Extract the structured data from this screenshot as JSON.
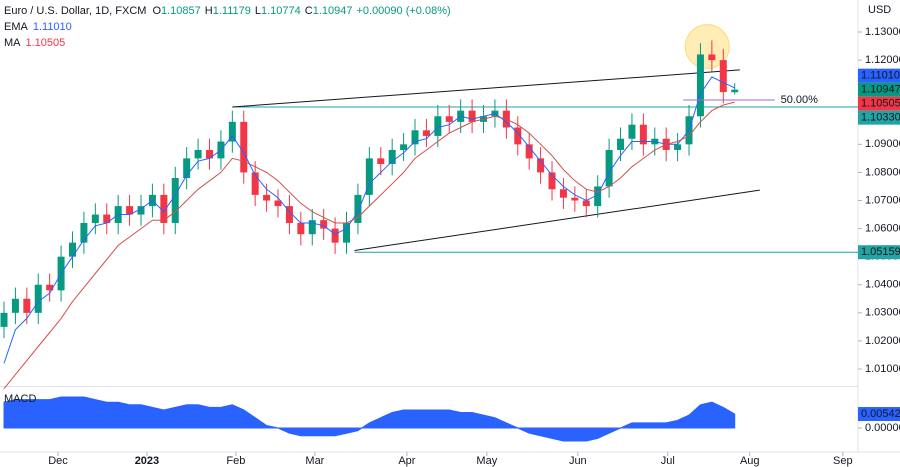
{
  "chart_data": [
    {
      "type": "candlestick",
      "title": "Euro / U.S. Dollar, 1D, FXCM",
      "currency": "USD",
      "ohlc_letters": [
        "O",
        "H",
        "L",
        "C"
      ],
      "change_label": "+0.00090 (+0.08%)",
      "open": [
        1.025,
        1.03,
        1.035,
        1.03,
        1.04,
        1.038,
        1.05,
        1.055,
        1.062,
        1.065,
        1.062,
        1.068,
        1.065,
        1.068,
        1.072,
        1.062,
        1.078,
        1.085,
        1.088,
        1.085,
        1.091,
        1.098,
        1.08,
        1.072,
        1.07,
        1.068,
        1.062,
        1.058,
        1.063,
        1.06,
        1.055,
        1.062,
        1.072,
        1.085,
        1.083,
        1.088,
        1.09,
        1.095,
        1.093,
        1.1,
        1.098,
        1.102,
        1.098,
        1.1,
        1.102,
        1.096,
        1.09,
        1.085,
        1.08,
        1.074,
        1.071,
        1.07,
        1.068,
        1.075,
        1.088,
        1.092,
        1.097,
        1.09,
        1.092,
        1.088,
        1.09,
        1.1,
        1.122,
        1.12,
        1.10857
      ],
      "high": [
        1.034,
        1.039,
        1.039,
        1.044,
        1.044,
        1.054,
        1.059,
        1.066,
        1.069,
        1.069,
        1.072,
        1.072,
        1.072,
        1.076,
        1.076,
        1.082,
        1.089,
        1.092,
        1.092,
        1.095,
        1.102,
        1.102,
        1.084,
        1.076,
        1.074,
        1.072,
        1.066,
        1.067,
        1.067,
        1.064,
        1.066,
        1.076,
        1.089,
        1.089,
        1.092,
        1.094,
        1.099,
        1.099,
        1.104,
        1.104,
        1.106,
        1.106,
        1.104,
        1.106,
        1.106,
        1.1,
        1.094,
        1.089,
        1.084,
        1.078,
        1.075,
        1.074,
        1.079,
        1.092,
        1.096,
        1.101,
        1.101,
        1.096,
        1.096,
        1.094,
        1.104,
        1.126,
        1.127,
        1.124,
        1.11179
      ],
      "low": [
        1.021,
        1.026,
        1.026,
        1.026,
        1.034,
        1.034,
        1.046,
        1.051,
        1.058,
        1.058,
        1.058,
        1.061,
        1.061,
        1.064,
        1.058,
        1.058,
        1.074,
        1.081,
        1.081,
        1.081,
        1.087,
        1.076,
        1.068,
        1.066,
        1.064,
        1.058,
        1.054,
        1.054,
        1.056,
        1.051,
        1.051,
        1.058,
        1.068,
        1.079,
        1.079,
        1.084,
        1.086,
        1.089,
        1.089,
        1.094,
        1.094,
        1.094,
        1.094,
        1.096,
        1.092,
        1.086,
        1.081,
        1.076,
        1.07,
        1.067,
        1.066,
        1.064,
        1.064,
        1.071,
        1.084,
        1.088,
        1.086,
        1.086,
        1.084,
        1.084,
        1.086,
        1.096,
        1.116,
        1.1046,
        1.10774
      ],
      "close": [
        1.03,
        1.035,
        1.03,
        1.04,
        1.038,
        1.05,
        1.055,
        1.062,
        1.065,
        1.062,
        1.068,
        1.065,
        1.068,
        1.072,
        1.062,
        1.078,
        1.085,
        1.088,
        1.085,
        1.091,
        1.098,
        1.08,
        1.072,
        1.07,
        1.068,
        1.062,
        1.058,
        1.063,
        1.06,
        1.055,
        1.062,
        1.072,
        1.085,
        1.083,
        1.088,
        1.09,
        1.095,
        1.093,
        1.1,
        1.098,
        1.102,
        1.098,
        1.1,
        1.102,
        1.096,
        1.09,
        1.085,
        1.08,
        1.074,
        1.071,
        1.07,
        1.068,
        1.075,
        1.088,
        1.092,
        1.097,
        1.09,
        1.092,
        1.088,
        1.09,
        1.1,
        1.122,
        1.12,
        1.1086,
        1.10947
      ],
      "up_color": "#089981",
      "down_color": "#f23645",
      "series": [
        {
          "name": "EMA",
          "color": "#2962ff",
          "last_label": "1.11010",
          "values": [
            1.012,
            1.024,
            1.028,
            1.034,
            1.037,
            1.044,
            1.05,
            1.056,
            1.061,
            1.062,
            1.065,
            1.065,
            1.067,
            1.07,
            1.066,
            1.072,
            1.079,
            1.084,
            1.085,
            1.088,
            1.093,
            1.087,
            1.079,
            1.074,
            1.071,
            1.066,
            1.062,
            1.062,
            1.061,
            1.058,
            1.06,
            1.066,
            1.076,
            1.08,
            1.084,
            1.087,
            1.091,
            1.092,
            1.096,
            1.097,
            1.1,
            1.099,
            1.1,
            1.101,
            1.098,
            1.094,
            1.089,
            1.084,
            1.079,
            1.075,
            1.072,
            1.07,
            1.072,
            1.08,
            1.086,
            1.091,
            1.091,
            1.091,
            1.09,
            1.09,
            1.095,
            1.108,
            1.114,
            1.112,
            1.1101
          ]
        },
        {
          "name": "MA",
          "color": "#d2504f",
          "last_label": "1.10505",
          "values": [
            1.003,
            1.008,
            1.013,
            1.018,
            1.023,
            1.028,
            1.034,
            1.039,
            1.044,
            1.049,
            1.054,
            1.057,
            1.06,
            1.063,
            1.063,
            1.066,
            1.07,
            1.074,
            1.077,
            1.08,
            1.085,
            1.084,
            1.082,
            1.08,
            1.077,
            1.073,
            1.069,
            1.066,
            1.064,
            1.062,
            1.062,
            1.064,
            1.068,
            1.072,
            1.076,
            1.08,
            1.085,
            1.088,
            1.091,
            1.094,
            1.096,
            1.098,
            1.099,
            1.1,
            1.099,
            1.097,
            1.094,
            1.09,
            1.086,
            1.081,
            1.077,
            1.074,
            1.073,
            1.075,
            1.078,
            1.082,
            1.085,
            1.088,
            1.09,
            1.091,
            1.093,
            1.098,
            1.102,
            1.104,
            1.10505
          ]
        }
      ],
      "hlines": [
        {
          "value": 1.1033,
          "label": "1.10330",
          "color": "#22a4a4",
          "from": 20
        },
        {
          "value": 1.05159,
          "label": "1.05159",
          "color": "#22a4a4",
          "from": 30.7
        }
      ],
      "trendlines": [
        {
          "from": [
            20,
            1.1033
          ],
          "to": [
            64.45,
            1.1165
          ]
        },
        {
          "from": [
            30.7,
            1.0522
          ],
          "to": [
            66.2,
            1.0737
          ]
        }
      ],
      "fib": {
        "value": 1.1058,
        "label": "50.00%",
        "from": 59.5,
        "to": 67.5,
        "color": "#9c6ac9"
      },
      "highlight": {
        "x": 61.6,
        "y": 1.1248
      },
      "xlim": [
        -0.35,
        74.8
      ],
      "xticks": [
        {
          "value": 4.73,
          "label": "Dec"
        },
        {
          "value": 12.52,
          "label": "2023"
        },
        {
          "value": 20.31,
          "label": "Feb"
        },
        {
          "value": 27.23,
          "label": "Mar"
        },
        {
          "value": 35.29,
          "label": "Apr"
        },
        {
          "value": 42.29,
          "label": "May"
        },
        {
          "value": 50.26,
          "label": "Jun"
        },
        {
          "value": 58.14,
          "label": "Jul"
        },
        {
          "value": 65.32,
          "label": "Aug"
        },
        {
          "value": 73.47,
          "label": "Sep"
        }
      ],
      "ylim": [
        1.0043,
        1.1414
      ],
      "yticks": [
        {
          "value": 1.13,
          "label": "1.13000"
        },
        {
          "value": 1.12,
          "label": "1.12000"
        },
        {
          "value": 1.11,
          "label": "1.11000"
        },
        {
          "value": 1.1,
          "label": "1.10000"
        },
        {
          "value": 1.09,
          "label": "1.09000"
        },
        {
          "value": 1.08,
          "label": "1.08000"
        },
        {
          "value": 1.07,
          "label": "1.07000"
        },
        {
          "value": 1.06,
          "label": "1.06000"
        },
        {
          "value": 1.05,
          "label": "1.05000"
        },
        {
          "value": 1.04,
          "label": "1.04000"
        },
        {
          "value": 1.03,
          "label": "1.03000"
        },
        {
          "value": 1.02,
          "label": "1.02000"
        },
        {
          "value": 1.01,
          "label": "1.01000"
        }
      ]
    },
    {
      "type": "area",
      "name": "MACD",
      "color": "#2962ff",
      "last_label": "0.00542",
      "values": [
        0.01,
        0.011,
        0.011,
        0.011,
        0.011,
        0.012,
        0.012,
        0.012,
        0.011,
        0.01,
        0.01,
        0.009,
        0.009,
        0.008,
        0.007,
        0.008,
        0.009,
        0.009,
        0.008,
        0.008,
        0.009,
        0.007,
        0.004,
        0.001,
        0.0,
        -0.002,
        -0.003,
        -0.003,
        -0.003,
        -0.003,
        -0.002,
        -0.001,
        0.002,
        0.004,
        0.006,
        0.007,
        0.007,
        0.007,
        0.007,
        0.007,
        0.006,
        0.006,
        0.005,
        0.004,
        0.002,
        0.0,
        -0.002,
        -0.003,
        -0.004,
        -0.005,
        -0.005,
        -0.005,
        -0.004,
        -0.002,
        0.0,
        0.002,
        0.002,
        0.002,
        0.002,
        0.003,
        0.005,
        0.009,
        0.01,
        0.008,
        0.00542
      ],
      "ylim": [
        -0.0085,
        0.0155
      ],
      "yticks": [
        {
          "value": 0,
          "label": "0.00000"
        }
      ]
    }
  ]
}
